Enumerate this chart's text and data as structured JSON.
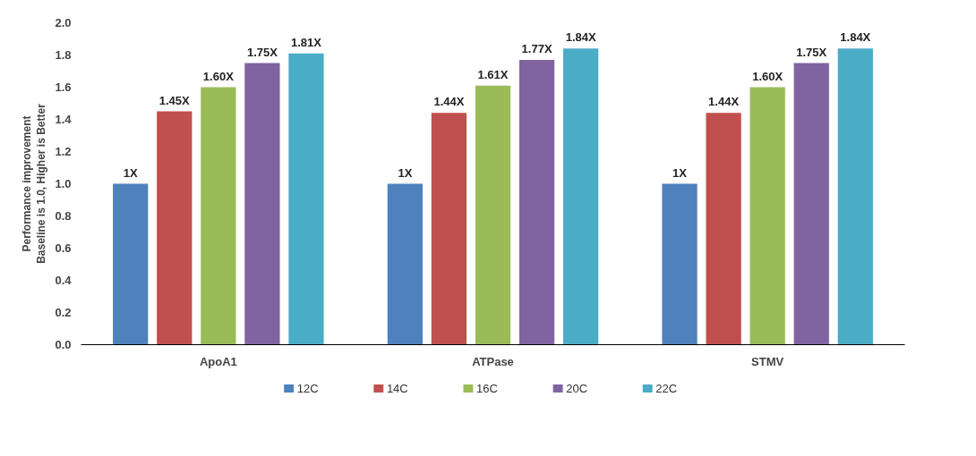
{
  "chart_data": {
    "type": "bar",
    "ylabel": "Performance improvement\nBaseline is 1.0, Higher is Better",
    "categories": [
      "ApoA1",
      "ATPase",
      "STMV"
    ],
    "series": [
      {
        "name": "12C",
        "color": "#4f81bd",
        "values": [
          1.0,
          1.0,
          1.0
        ],
        "value_labels": [
          "1X",
          "1X",
          "1X"
        ]
      },
      {
        "name": "14C",
        "color": "#c0504d",
        "values": [
          1.45,
          1.44,
          1.44
        ],
        "value_labels": [
          "1.45X",
          "1.44X",
          "1.44X"
        ]
      },
      {
        "name": "16C",
        "color": "#9bbb59",
        "values": [
          1.6,
          1.61,
          1.6
        ],
        "value_labels": [
          "1.60X",
          "1.61X",
          "1.60X"
        ]
      },
      {
        "name": "20C",
        "color": "#8064a2",
        "values": [
          1.75,
          1.77,
          1.75
        ],
        "value_labels": [
          "1.75X",
          "1.77X",
          "1.75X"
        ]
      },
      {
        "name": "22C",
        "color": "#4bacc6",
        "values": [
          1.81,
          1.84,
          1.84
        ],
        "value_labels": [
          "1.81X",
          "1.84X",
          "1.84X"
        ]
      }
    ],
    "ylim": [
      0,
      2.0
    ],
    "yticks": [
      {
        "value": 0,
        "label": "0.0"
      },
      0.2,
      0.4,
      0.6,
      0.8,
      {
        "value": 1,
        "label": "1.0"
      },
      1.2,
      1.4,
      1.6,
      1.8,
      {
        "value": 2,
        "label": "2.0"
      }
    ],
    "grid": false,
    "legend": "bottom"
  }
}
